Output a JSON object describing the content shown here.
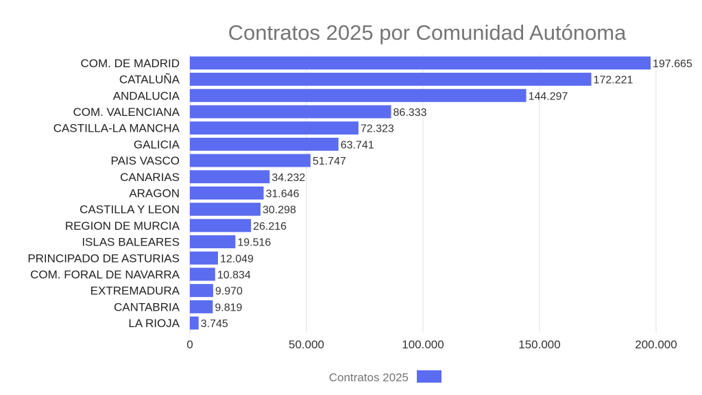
{
  "chart_data": {
    "type": "bar",
    "orientation": "horizontal",
    "title": "Contratos 2025 por Comunidad Autónoma",
    "categories": [
      "COM. DE MADRID",
      "CATALUÑA",
      "ANDALUCIA",
      "COM. VALENCIANA",
      "CASTILLA-LA MANCHA",
      "GALICIA",
      "PAIS VASCO",
      "CANARIAS",
      "ARAGON",
      "CASTILLA Y LEON",
      "REGION DE MURCIA",
      "ISLAS BALEARES",
      "PRINCIPADO DE ASTURIAS",
      "COM. FORAL DE NAVARRA",
      "EXTREMADURA",
      "CANTABRIA",
      "LA RIOJA"
    ],
    "series": [
      {
        "name": "Contratos 2025",
        "color": "#5b6cf0",
        "values": [
          197665,
          172221,
          144297,
          86333,
          72323,
          63741,
          51747,
          34232,
          31646,
          30298,
          26216,
          19516,
          12049,
          10834,
          9970,
          9819,
          3745
        ],
        "labels": [
          "197.665",
          "172.221",
          "144.297",
          "86.333",
          "72.323",
          "63.741",
          "51.747",
          "34.232",
          "31.646",
          "30.298",
          "26.216",
          "19.516",
          "12.049",
          "10.834",
          "9.970",
          "9.819",
          "3.745"
        ]
      }
    ],
    "xlim": [
      0,
      200000
    ],
    "x_ticks": [
      0,
      50000,
      100000,
      150000,
      200000
    ],
    "x_tick_labels": [
      "0",
      "50.000",
      "100.000",
      "150.000",
      "200.000"
    ],
    "grid": true,
    "legend_position": "bottom"
  }
}
